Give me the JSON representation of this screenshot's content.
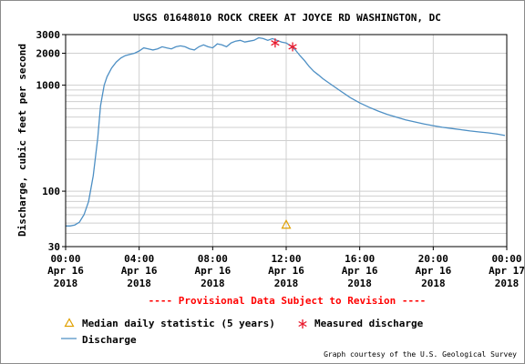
{
  "chart_data": {
    "type": "line",
    "title": "USGS 01648010 ROCK CREEK AT JOYCE RD WASHINGTON, DC",
    "ylabel": "Discharge, cubic feet per second",
    "yscale": "log",
    "ylim": [
      30,
      3000
    ],
    "y_ticks": [
      {
        "value": 30,
        "label": "30"
      },
      {
        "value": 100,
        "label": "100"
      },
      {
        "value": 1000,
        "label": "1000"
      },
      {
        "value": 2000,
        "label": "2000"
      },
      {
        "value": 3000,
        "label": "3000"
      }
    ],
    "xlim": [
      0,
      24
    ],
    "x_ticks": [
      {
        "value": 0,
        "time": "00:00",
        "date": "Apr 16",
        "year": "2018"
      },
      {
        "value": 4,
        "time": "04:00",
        "date": "Apr 16",
        "year": "2018"
      },
      {
        "value": 8,
        "time": "08:00",
        "date": "Apr 16",
        "year": "2018"
      },
      {
        "value": 12,
        "time": "12:00",
        "date": "Apr 16",
        "year": "2018"
      },
      {
        "value": 16,
        "time": "16:00",
        "date": "Apr 16",
        "year": "2018"
      },
      {
        "value": 20,
        "time": "20:00",
        "date": "Apr 16",
        "year": "2018"
      },
      {
        "value": 24,
        "time": "00:00",
        "date": "Apr 17",
        "year": "2018"
      }
    ],
    "grid": true,
    "legend_position": "bottom",
    "series": [
      {
        "name": "Discharge",
        "kind": "line",
        "color": "#4d8fc4",
        "x": [
          0,
          0.25,
          0.5,
          0.75,
          1.0,
          1.25,
          1.5,
          1.75,
          1.9,
          2.0,
          2.1,
          2.25,
          2.5,
          2.75,
          3.0,
          3.25,
          3.5,
          3.75,
          4.0,
          4.25,
          4.5,
          4.75,
          5.0,
          5.25,
          5.5,
          5.75,
          6.0,
          6.25,
          6.5,
          6.75,
          7.0,
          7.25,
          7.5,
          7.75,
          8.0,
          8.25,
          8.5,
          8.75,
          9.0,
          9.25,
          9.5,
          9.75,
          10.0,
          10.25,
          10.5,
          10.75,
          11.0,
          11.25,
          11.5,
          11.75,
          12.0,
          12.25,
          12.5,
          12.75,
          13.0,
          13.25,
          13.5,
          13.75,
          14.0,
          14.5,
          15.0,
          15.5,
          16.0,
          16.5,
          17.0,
          17.5,
          18.0,
          18.5,
          19.0,
          19.5,
          20.0,
          20.5,
          21.0,
          21.5,
          22.0,
          22.5,
          23.0,
          23.5,
          23.9
        ],
        "y": [
          47,
          47,
          48,
          51,
          60,
          80,
          140,
          320,
          640,
          800,
          1000,
          1200,
          1450,
          1650,
          1800,
          1900,
          1950,
          2000,
          2100,
          2250,
          2200,
          2150,
          2200,
          2300,
          2250,
          2200,
          2300,
          2350,
          2300,
          2200,
          2150,
          2300,
          2400,
          2300,
          2250,
          2450,
          2400,
          2300,
          2500,
          2600,
          2650,
          2550,
          2600,
          2650,
          2800,
          2750,
          2650,
          2750,
          2650,
          2550,
          2500,
          2350,
          2150,
          1900,
          1700,
          1500,
          1350,
          1250,
          1150,
          1000,
          870,
          760,
          680,
          620,
          570,
          530,
          500,
          470,
          450,
          430,
          415,
          400,
          390,
          380,
          370,
          362,
          355,
          345,
          335
        ]
      },
      {
        "name": "Measured discharge",
        "kind": "marker",
        "marker": "asterisk",
        "color": "#e8182c",
        "x": [
          11.4,
          12.35
        ],
        "y": [
          2500,
          2300
        ]
      },
      {
        "name": "Median daily statistic (5 years)",
        "kind": "marker",
        "marker": "triangle",
        "color": "#e0a000",
        "x": [
          12.0
        ],
        "y": [
          48
        ]
      }
    ],
    "provisional_note": "---- Provisional Data Subject to Revision ----",
    "credit": "Graph courtesy of the U.S. Geological Survey"
  }
}
